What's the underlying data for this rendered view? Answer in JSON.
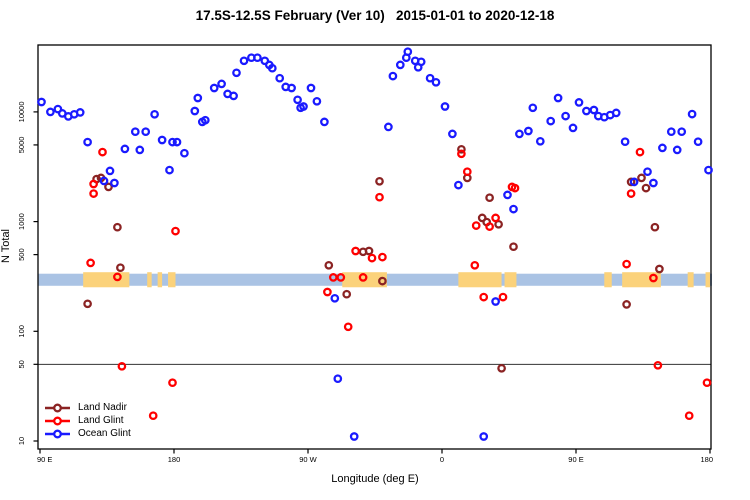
{
  "title": "17.5S-12.5S February (Ver 10)   2015-01-01 to 2020-12-18",
  "chart_data": {
    "type": "scatter",
    "xlabel": "Longitude (deg E)",
    "ylabel": "N Total",
    "y_scale": "log",
    "xlim": [
      90,
      540
    ],
    "ylim": [
      8.5,
      41000
    ],
    "x_ticks": [
      {
        "pos": 90,
        "label": "90 E"
      },
      {
        "pos": 180,
        "label": "180"
      },
      {
        "pos": 270,
        "label": "90 W"
      },
      {
        "pos": 360,
        "label": "0"
      },
      {
        "pos": 450,
        "label": "90 E"
      },
      {
        "pos": 540,
        "label": "180"
      }
    ],
    "y_ticks": [
      10,
      50,
      100,
      500,
      1000,
      5000,
      10000
    ],
    "reference_line_n": 50,
    "map_band": {
      "description": "latitude-band map strip: ocean blue with land patches",
      "n_min": 260,
      "n_max": 335,
      "ocean_color": "#aac3e4",
      "land_color": "#fbd27b",
      "land_segments_deg": [
        [
          119,
          150
        ],
        [
          162,
          165
        ],
        [
          169,
          172
        ],
        [
          176,
          181
        ],
        [
          293,
          323
        ],
        [
          371,
          400
        ],
        [
          402,
          410
        ],
        [
          469,
          474
        ],
        [
          481,
          507
        ],
        [
          525,
          529
        ],
        [
          537,
          540
        ]
      ]
    },
    "legend_position": "bottom-left",
    "series": [
      {
        "name": "Land Nadir",
        "color": "#8B2323",
        "points": [
          [
            122,
            178
          ],
          [
            128,
            2440
          ],
          [
            131,
            2500
          ],
          [
            136,
            2070
          ],
          [
            142,
            890
          ],
          [
            144,
            380
          ],
          [
            284,
            400
          ],
          [
            296,
            218
          ],
          [
            307,
            530
          ],
          [
            311,
            540
          ],
          [
            318,
            2330
          ],
          [
            320,
            287
          ],
          [
            373,
            4560
          ],
          [
            377,
            2500
          ],
          [
            387,
            1080
          ],
          [
            390,
            990
          ],
          [
            392,
            1650
          ],
          [
            398,
            945
          ],
          [
            400,
            46
          ],
          [
            408,
            590
          ],
          [
            484,
            176
          ],
          [
            487,
            2300
          ],
          [
            494,
            2500
          ],
          [
            497,
            2020
          ],
          [
            503,
            890
          ],
          [
            506,
            370
          ]
        ]
      },
      {
        "name": "Land Glint",
        "color": "#FF0000",
        "points": [
          [
            124,
            420
          ],
          [
            126,
            2200
          ],
          [
            126,
            1800
          ],
          [
            132,
            4300
          ],
          [
            142,
            313
          ],
          [
            145,
            48
          ],
          [
            166,
            17
          ],
          [
            179,
            34
          ],
          [
            181,
            820
          ],
          [
            283,
            228
          ],
          [
            287,
            310
          ],
          [
            292,
            310
          ],
          [
            297,
            110
          ],
          [
            302,
            540
          ],
          [
            307,
            310
          ],
          [
            313,
            465
          ],
          [
            318,
            1670
          ],
          [
            320,
            475
          ],
          [
            373,
            4150
          ],
          [
            377,
            2850
          ],
          [
            382,
            400
          ],
          [
            383,
            920
          ],
          [
            388,
            205
          ],
          [
            392,
            900
          ],
          [
            396,
            1080
          ],
          [
            401,
            205
          ],
          [
            407,
            2070
          ],
          [
            409,
            2020
          ],
          [
            484,
            410
          ],
          [
            487,
            1800
          ],
          [
            493,
            4300
          ],
          [
            502,
            306
          ],
          [
            505,
            49
          ],
          [
            526,
            17
          ],
          [
            538,
            34
          ]
        ]
      },
      {
        "name": "Ocean Glint",
        "color": "#1a1aff",
        "points": [
          [
            91,
            12300
          ],
          [
            97,
            10000
          ],
          [
            102,
            10600
          ],
          [
            105,
            9700
          ],
          [
            109,
            9100
          ],
          [
            113,
            9500
          ],
          [
            117,
            9900
          ],
          [
            122,
            5300
          ],
          [
            133,
            2350
          ],
          [
            137,
            2900
          ],
          [
            140,
            2250
          ],
          [
            147,
            4600
          ],
          [
            154,
            6600
          ],
          [
            157,
            4500
          ],
          [
            161,
            6600
          ],
          [
            167,
            9500
          ],
          [
            172,
            5550
          ],
          [
            177,
            2950
          ],
          [
            179,
            5300
          ],
          [
            182,
            5300
          ],
          [
            187,
            4200
          ],
          [
            194,
            10200
          ],
          [
            196,
            13400
          ],
          [
            199,
            8100
          ],
          [
            201,
            8400
          ],
          [
            207,
            16500
          ],
          [
            212,
            18000
          ],
          [
            216,
            14600
          ],
          [
            220,
            14000
          ],
          [
            222,
            22700
          ],
          [
            227,
            29200
          ],
          [
            232,
            31200
          ],
          [
            236,
            31200
          ],
          [
            241,
            29200
          ],
          [
            244,
            26800
          ],
          [
            246,
            25000
          ],
          [
            251,
            20300
          ],
          [
            255,
            16900
          ],
          [
            259,
            16500
          ],
          [
            263,
            12900
          ],
          [
            265,
            10900
          ],
          [
            267,
            11200
          ],
          [
            272,
            16500
          ],
          [
            276,
            12500
          ],
          [
            281,
            8100
          ],
          [
            288,
            200
          ],
          [
            290,
            37
          ],
          [
            301,
            11
          ],
          [
            324,
            7300
          ],
          [
            327,
            21200
          ],
          [
            332,
            26800
          ],
          [
            336,
            31200
          ],
          [
            337,
            35400
          ],
          [
            342,
            29200
          ],
          [
            344,
            25500
          ],
          [
            346,
            28600
          ],
          [
            352,
            20300
          ],
          [
            356,
            18600
          ],
          [
            362,
            11200
          ],
          [
            367,
            6300
          ],
          [
            371,
            2150
          ],
          [
            388,
            11
          ],
          [
            396,
            187
          ],
          [
            404,
            1750
          ],
          [
            408,
            1300
          ],
          [
            412,
            6300
          ],
          [
            418,
            6700
          ],
          [
            421,
            10900
          ],
          [
            426,
            5400
          ],
          [
            433,
            8250
          ],
          [
            438,
            13400
          ],
          [
            443,
            9150
          ],
          [
            448,
            7150
          ],
          [
            452,
            12200
          ],
          [
            457,
            10200
          ],
          [
            462,
            10400
          ],
          [
            465,
            9150
          ],
          [
            469,
            8950
          ],
          [
            473,
            9350
          ],
          [
            477,
            9800
          ],
          [
            483,
            5350
          ],
          [
            489,
            2300
          ],
          [
            498,
            2850
          ],
          [
            502,
            2250
          ],
          [
            508,
            4700
          ],
          [
            514,
            6600
          ],
          [
            518,
            4500
          ],
          [
            521,
            6600
          ],
          [
            528,
            9550
          ],
          [
            532,
            5350
          ],
          [
            539,
            2950
          ]
        ]
      }
    ]
  },
  "legend": {
    "items": [
      "Land Nadir",
      "Land Glint",
      "Ocean Glint"
    ]
  }
}
